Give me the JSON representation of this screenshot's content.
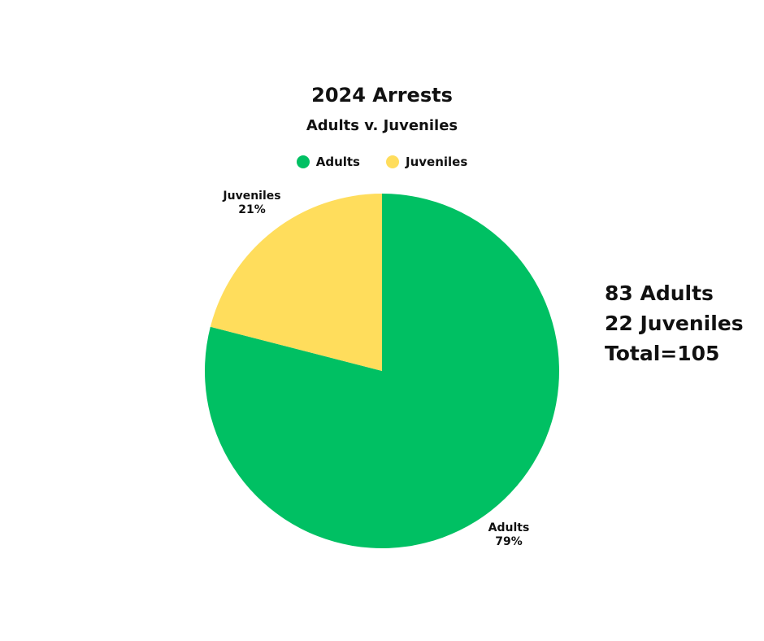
{
  "chart_data": {
    "type": "pie",
    "title": "2024 Arrests",
    "subtitle": "Adults v. Juveniles",
    "legend_placement": "top",
    "slices": [
      {
        "name": "Adults",
        "value": 79,
        "percent_label": "79%",
        "color": "#00c063"
      },
      {
        "name": "Juveniles",
        "value": 21,
        "percent_label": "21%",
        "color": "#ffdd5c"
      }
    ]
  },
  "summary": {
    "line1": "83 Adults",
    "line2": "22 Juveniles",
    "line3": "Total=105"
  }
}
